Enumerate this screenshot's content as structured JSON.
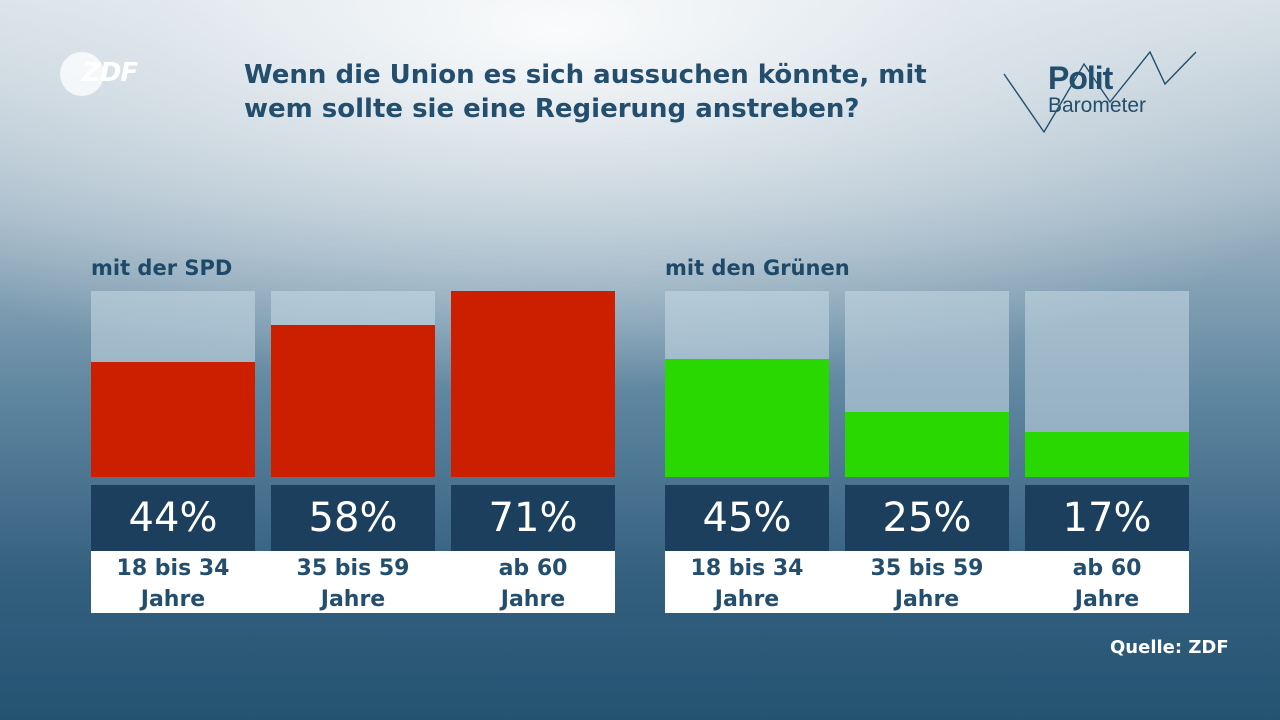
{
  "header": {
    "logo_text": "ZDF",
    "title_line1": "Wenn die Union es sich aussuchen könnte, mit",
    "title_line2": "wem sollte sie eine Regierung anstreben?",
    "brand_line1": "Polit",
    "brand_line2": "Barometer"
  },
  "groups": [
    {
      "label": "mit der SPD",
      "color": "#cc1f00",
      "bars": [
        {
          "pct_label": "44%",
          "value": 44,
          "age_line1": "18 bis 34",
          "age_line2": "Jahre"
        },
        {
          "pct_label": "58%",
          "value": 58,
          "age_line1": "35 bis 59",
          "age_line2": "Jahre"
        },
        {
          "pct_label": "71%",
          "value": 71,
          "age_line1": "ab 60",
          "age_line2": "Jahre"
        }
      ]
    },
    {
      "label": "mit den Grünen",
      "color": "#29d800",
      "bars": [
        {
          "pct_label": "45%",
          "value": 45,
          "age_line1": "18 bis 34",
          "age_line2": "Jahre"
        },
        {
          "pct_label": "25%",
          "value": 25,
          "age_line1": "35 bis 59",
          "age_line2": "Jahre"
        },
        {
          "pct_label": "17%",
          "value": 17,
          "age_line1": "ab 60",
          "age_line2": "Jahre"
        }
      ]
    }
  ],
  "source": "Quelle: ZDF",
  "chart_data": {
    "type": "bar",
    "title": "Wenn die Union es sich aussuchen könnte, mit wem sollte sie eine Regierung anstreben?",
    "categories": [
      "18 bis 34 Jahre",
      "35 bis 59 Jahre",
      "ab 60 Jahre"
    ],
    "series": [
      {
        "name": "mit der SPD",
        "values": [
          44,
          58,
          71
        ],
        "color": "#cc1f00"
      },
      {
        "name": "mit den Grünen",
        "values": [
          45,
          25,
          17
        ],
        "color": "#29d800"
      }
    ],
    "ylim": [
      0,
      71
    ],
    "source": "Quelle: ZDF"
  }
}
